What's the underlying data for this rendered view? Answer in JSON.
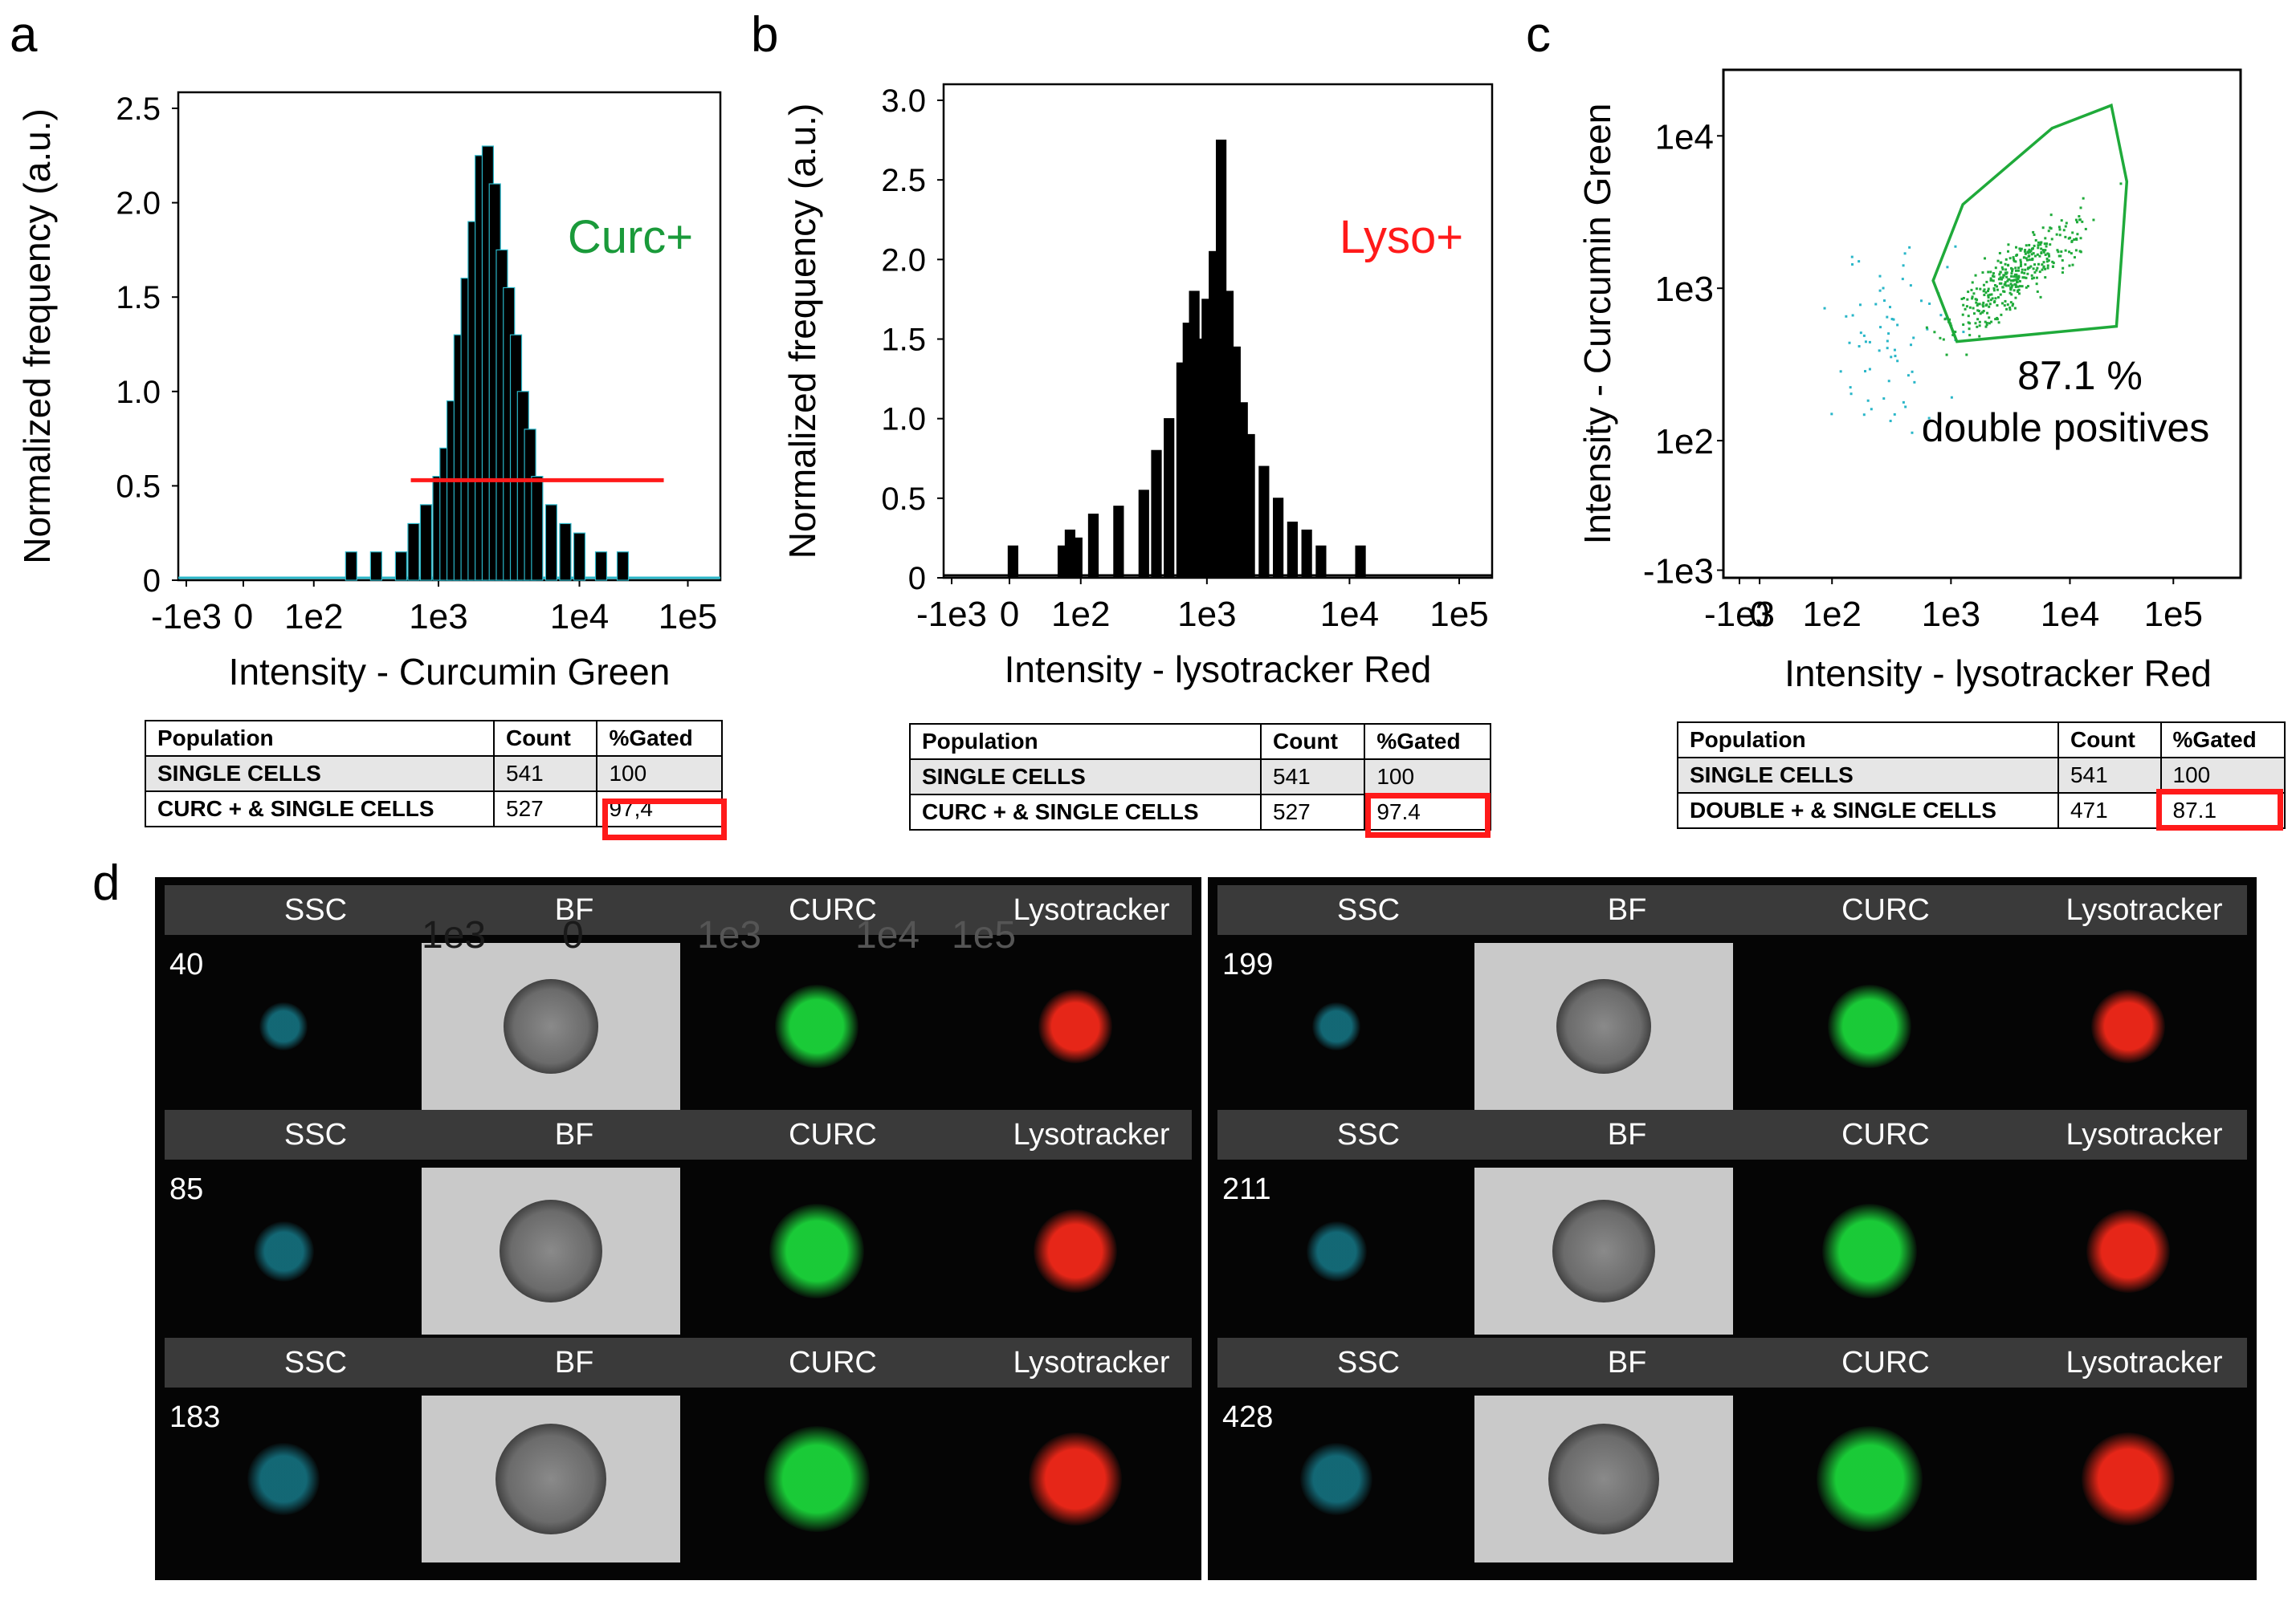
{
  "panel_labels": {
    "a": "a",
    "b": "b",
    "c": "c",
    "d": "d"
  },
  "chart_data": [
    {
      "type": "bar",
      "panel": "a",
      "title": "",
      "annotation": "Curc+",
      "annotation_color": "#1a9a3a",
      "xlabel": "Intensity - Curcumin Green",
      "ylabel": "Normalized frequency (a.u.)",
      "x_ticks": [
        "-1e3",
        "0",
        "1e2",
        "1e3",
        "1e4",
        "1e5"
      ],
      "y_ticks": [
        "0",
        "0.5",
        "1.0",
        "1.5",
        "2.0",
        "2.5"
      ],
      "ylim": [
        0,
        2.5
      ],
      "gate": {
        "x_from": "6e2",
        "x_to": "6e4",
        "y": 0.53,
        "color": "#ff1a1a"
      },
      "bin_centers_log10": [
        2.3,
        2.5,
        2.7,
        2.8,
        2.9,
        3.0,
        3.05,
        3.1,
        3.15,
        3.2,
        3.25,
        3.3,
        3.35,
        3.4,
        3.45,
        3.5,
        3.55,
        3.6,
        3.65,
        3.7,
        3.8,
        3.9,
        4.0,
        4.2,
        4.4
      ],
      "values": [
        0.15,
        0.15,
        0.15,
        0.3,
        0.4,
        0.55,
        0.7,
        0.95,
        1.3,
        1.6,
        1.9,
        2.25,
        2.3,
        2.1,
        1.75,
        1.55,
        1.3,
        1.0,
        0.8,
        0.55,
        0.4,
        0.3,
        0.25,
        0.15,
        0.15
      ]
    },
    {
      "type": "bar",
      "panel": "b",
      "title": "",
      "annotation": "Lyso+",
      "annotation_color": "#ff1a1a",
      "xlabel": "Intensity - lysotracker Red",
      "ylabel": "Normalized frequency (a.u.)",
      "x_ticks": [
        "-1e3",
        "0",
        "1e2",
        "1e3",
        "1e4",
        "1e5"
      ],
      "y_ticks": [
        "0",
        "0.5",
        "1.0",
        "1.5",
        "2.0",
        "2.5",
        "3.0"
      ],
      "ylim": [
        0,
        3.0
      ],
      "bin_centers_log10": [
        0.1,
        1.5,
        1.7,
        1.9,
        2.1,
        2.3,
        2.5,
        2.6,
        2.7,
        2.8,
        2.85,
        2.9,
        2.95,
        3.0,
        3.05,
        3.1,
        3.15,
        3.2,
        3.25,
        3.3,
        3.4,
        3.5,
        3.6,
        3.7,
        3.8,
        4.1
      ],
      "values": [
        0.2,
        0.2,
        0.3,
        0.25,
        0.4,
        0.45,
        0.55,
        0.8,
        1.0,
        1.35,
        1.6,
        1.8,
        1.5,
        1.75,
        2.05,
        2.75,
        1.8,
        1.45,
        1.1,
        0.9,
        0.7,
        0.5,
        0.35,
        0.3,
        0.2,
        0.2
      ]
    },
    {
      "type": "scatter",
      "panel": "c",
      "title": "",
      "xlabel": "Intensity - lysotracker Red",
      "ylabel": "Intensity - Curcumin Green",
      "x_ticks": [
        "-1e3",
        "0",
        "1e2",
        "1e3",
        "1e4",
        "1e5"
      ],
      "y_ticks": [
        "-1e3",
        "1e2",
        "1e3",
        "1e4"
      ],
      "gate_label_1": "87.1 %",
      "gate_label_2": "double positives",
      "gated_color": "#1faa3a",
      "ungated_color": "#29b6c8",
      "gate_polygon_log10": [
        [
          2.85,
          3.05
        ],
        [
          3.1,
          3.55
        ],
        [
          3.85,
          4.05
        ],
        [
          4.4,
          4.2
        ],
        [
          4.55,
          3.7
        ],
        [
          4.45,
          2.75
        ],
        [
          3.05,
          2.65
        ]
      ],
      "gated_cluster": {
        "x_log10_center": 3.55,
        "y_log10_center": 3.1,
        "n": 380
      },
      "ungated_cluster": {
        "x_log10_center": 2.6,
        "y_log10_center": 2.7,
        "n": 70
      }
    }
  ],
  "tables": [
    {
      "headers": [
        "Population",
        "Count",
        "%Gated"
      ],
      "rows": [
        [
          "SINGLE CELLS",
          "541",
          "100"
        ],
        [
          "CURC + & SINGLE CELLS",
          "527",
          "97,4"
        ]
      ]
    },
    {
      "headers": [
        "Population",
        "Count",
        "%Gated"
      ],
      "rows": [
        [
          "SINGLE CELLS",
          "541",
          "100"
        ],
        [
          "CURC + & SINGLE CELLS",
          "527",
          "97.4"
        ]
      ]
    },
    {
      "headers": [
        "Population",
        "Count",
        "%Gated"
      ],
      "rows": [
        [
          "SINGLE CELLS",
          "541",
          "100"
        ],
        [
          "DOUBLE + & SINGLE CELLS",
          "471",
          "87.1"
        ]
      ]
    }
  ],
  "stray_ticks": [
    "1e3",
    "0",
    "1e3",
    "1e4",
    "1e5"
  ],
  "gallery": {
    "channels": [
      "SSC",
      "BF",
      "CURC",
      "Lysotracker"
    ],
    "left_events": [
      "40",
      "85",
      "183"
    ],
    "right_events": [
      "199",
      "211",
      "428"
    ],
    "colors": {
      "ssc": "#1fb8d0",
      "curc": "#1bd43a",
      "lyso": "#ff2a1a"
    }
  }
}
